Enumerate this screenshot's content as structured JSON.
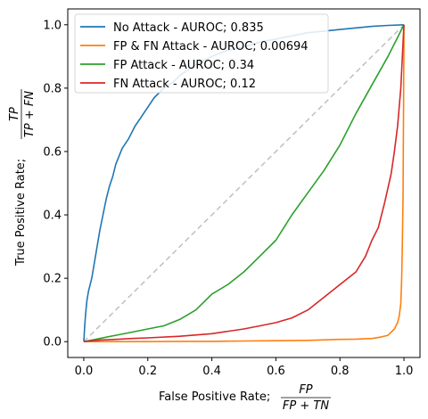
{
  "chart_data": {
    "type": "line",
    "xlabel_prefix": "False Positive Rate; ",
    "xlabel_num": "FP",
    "xlabel_den": "FP + TN",
    "ylabel_prefix": "True Positive Rate; ",
    "ylabel_num": "TP",
    "ylabel_den": "TP + FN",
    "xlim": [
      -0.05,
      1.05
    ],
    "ylim": [
      -0.05,
      1.05
    ],
    "xticks": [
      "0.0",
      "0.2",
      "0.4",
      "0.6",
      "0.8",
      "1.0"
    ],
    "yticks": [
      "0.0",
      "0.2",
      "0.4",
      "0.6",
      "0.8",
      "1.0"
    ],
    "grid": false,
    "legend_position": "top-left",
    "series": [
      {
        "name": "No Attack - AUROC; 0.835",
        "color": "#1f77b4",
        "x": [
          0.0,
          0.003,
          0.006,
          0.01,
          0.015,
          0.02,
          0.025,
          0.03,
          0.04,
          0.05,
          0.06,
          0.07,
          0.08,
          0.09,
          0.1,
          0.12,
          0.14,
          0.16,
          0.18,
          0.2,
          0.22,
          0.25,
          0.28,
          0.3,
          0.33,
          0.36,
          0.4,
          0.45,
          0.5,
          0.55,
          0.6,
          0.65,
          0.7,
          0.75,
          0.8,
          0.85,
          0.9,
          0.95,
          1.0
        ],
        "y": [
          0.0,
          0.05,
          0.09,
          0.13,
          0.16,
          0.18,
          0.2,
          0.23,
          0.29,
          0.35,
          0.4,
          0.45,
          0.49,
          0.52,
          0.56,
          0.61,
          0.64,
          0.68,
          0.71,
          0.74,
          0.77,
          0.8,
          0.82,
          0.84,
          0.86,
          0.88,
          0.9,
          0.92,
          0.93,
          0.945,
          0.955,
          0.965,
          0.975,
          0.98,
          0.985,
          0.99,
          0.995,
          0.998,
          1.0
        ]
      },
      {
        "name": "FP & FN Attack - AUROC; 0.00694",
        "color": "#ff7f0e",
        "x": [
          0.0,
          0.1,
          0.2,
          0.3,
          0.4,
          0.5,
          0.6,
          0.7,
          0.8,
          0.85,
          0.9,
          0.93,
          0.95,
          0.96,
          0.97,
          0.98,
          0.985,
          0.99,
          0.993,
          0.995,
          0.997,
          0.998,
          0.999,
          1.0,
          1.0
        ],
        "y": [
          0.0,
          0.0,
          0.0,
          0.001,
          0.001,
          0.002,
          0.003,
          0.004,
          0.007,
          0.008,
          0.01,
          0.015,
          0.02,
          0.03,
          0.04,
          0.06,
          0.08,
          0.12,
          0.2,
          0.3,
          0.45,
          0.6,
          0.8,
          0.95,
          1.0
        ]
      },
      {
        "name": "FP Attack - AUROC; 0.34",
        "color": "#2ca02c",
        "x": [
          0.0,
          0.05,
          0.1,
          0.15,
          0.2,
          0.25,
          0.3,
          0.35,
          0.4,
          0.45,
          0.5,
          0.55,
          0.6,
          0.65,
          0.7,
          0.75,
          0.8,
          0.85,
          0.9,
          0.95,
          0.98,
          1.0
        ],
        "y": [
          0.0,
          0.01,
          0.02,
          0.03,
          0.04,
          0.05,
          0.07,
          0.1,
          0.15,
          0.18,
          0.22,
          0.27,
          0.32,
          0.4,
          0.47,
          0.54,
          0.62,
          0.72,
          0.81,
          0.9,
          0.96,
          1.0
        ]
      },
      {
        "name": "FN Attack - AUROC; 0.12",
        "color": "#d62728",
        "x": [
          0.0,
          0.05,
          0.1,
          0.15,
          0.2,
          0.3,
          0.4,
          0.5,
          0.55,
          0.6,
          0.65,
          0.7,
          0.75,
          0.8,
          0.85,
          0.88,
          0.9,
          0.92,
          0.94,
          0.96,
          0.97,
          0.98,
          0.99,
          1.0
        ],
        "y": [
          0.0,
          0.005,
          0.007,
          0.01,
          0.012,
          0.017,
          0.025,
          0.04,
          0.05,
          0.06,
          0.075,
          0.1,
          0.14,
          0.18,
          0.22,
          0.27,
          0.32,
          0.36,
          0.44,
          0.53,
          0.6,
          0.68,
          0.8,
          1.0
        ]
      }
    ],
    "reference_line": {
      "color": "#bfbfbf",
      "x": [
        0,
        1
      ],
      "y": [
        0,
        1
      ]
    },
    "colors": {
      "axis": "#000000",
      "legend_border": "#d6d6d6"
    }
  }
}
